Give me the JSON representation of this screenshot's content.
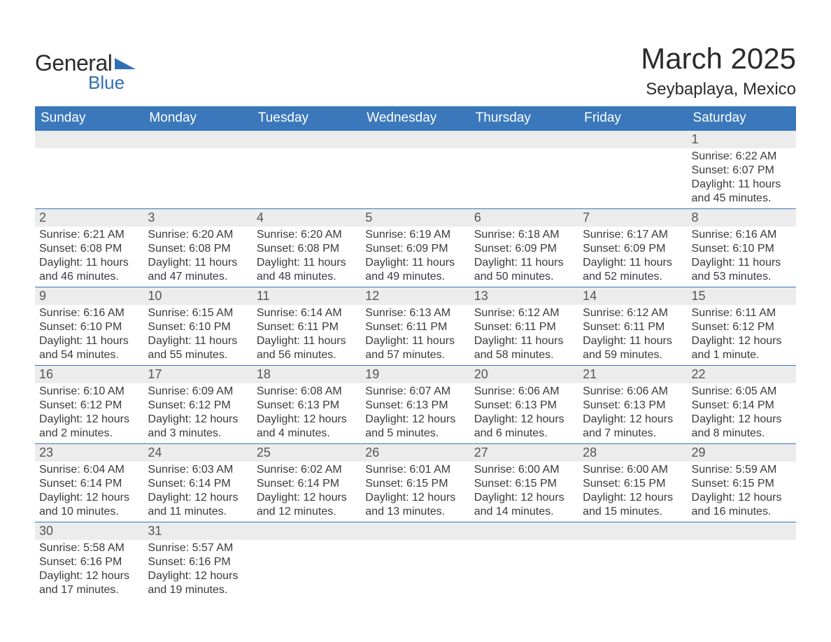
{
  "logo": {
    "word1": "General",
    "word2": "Blue",
    "triangle_color": "#2f6fb3",
    "text_color_dark": "#2b2b2b"
  },
  "title": "March 2025",
  "location": "Seybaplaya, Mexico",
  "colors": {
    "header_bg": "#3a78bb",
    "header_text": "#ffffff",
    "daynum_bg": "#ececec",
    "daynum_border": "#3a78bb",
    "body_text": "#3a3a3a",
    "daynum_text": "#555555",
    "page_bg": "#ffffff"
  },
  "fonts": {
    "title_size_pt": 42,
    "location_size_pt": 24,
    "weekday_size_pt": 19,
    "daynum_size_pt": 18,
    "detail_size_pt": 16,
    "family": "Arial"
  },
  "weekdays": [
    "Sunday",
    "Monday",
    "Tuesday",
    "Wednesday",
    "Thursday",
    "Friday",
    "Saturday"
  ],
  "grid": {
    "columns": 7,
    "rows": 6,
    "first_weekday_index": 6,
    "days_in_month": 31
  },
  "days": {
    "1": {
      "sunrise": "6:22 AM",
      "sunset": "6:07 PM",
      "daylight": "11 hours and 45 minutes."
    },
    "2": {
      "sunrise": "6:21 AM",
      "sunset": "6:08 PM",
      "daylight": "11 hours and 46 minutes."
    },
    "3": {
      "sunrise": "6:20 AM",
      "sunset": "6:08 PM",
      "daylight": "11 hours and 47 minutes."
    },
    "4": {
      "sunrise": "6:20 AM",
      "sunset": "6:08 PM",
      "daylight": "11 hours and 48 minutes."
    },
    "5": {
      "sunrise": "6:19 AM",
      "sunset": "6:09 PM",
      "daylight": "11 hours and 49 minutes."
    },
    "6": {
      "sunrise": "6:18 AM",
      "sunset": "6:09 PM",
      "daylight": "11 hours and 50 minutes."
    },
    "7": {
      "sunrise": "6:17 AM",
      "sunset": "6:09 PM",
      "daylight": "11 hours and 52 minutes."
    },
    "8": {
      "sunrise": "6:16 AM",
      "sunset": "6:10 PM",
      "daylight": "11 hours and 53 minutes."
    },
    "9": {
      "sunrise": "6:16 AM",
      "sunset": "6:10 PM",
      "daylight": "11 hours and 54 minutes."
    },
    "10": {
      "sunrise": "6:15 AM",
      "sunset": "6:10 PM",
      "daylight": "11 hours and 55 minutes."
    },
    "11": {
      "sunrise": "6:14 AM",
      "sunset": "6:11 PM",
      "daylight": "11 hours and 56 minutes."
    },
    "12": {
      "sunrise": "6:13 AM",
      "sunset": "6:11 PM",
      "daylight": "11 hours and 57 minutes."
    },
    "13": {
      "sunrise": "6:12 AM",
      "sunset": "6:11 PM",
      "daylight": "11 hours and 58 minutes."
    },
    "14": {
      "sunrise": "6:12 AM",
      "sunset": "6:11 PM",
      "daylight": "11 hours and 59 minutes."
    },
    "15": {
      "sunrise": "6:11 AM",
      "sunset": "6:12 PM",
      "daylight": "12 hours and 1 minute."
    },
    "16": {
      "sunrise": "6:10 AM",
      "sunset": "6:12 PM",
      "daylight": "12 hours and 2 minutes."
    },
    "17": {
      "sunrise": "6:09 AM",
      "sunset": "6:12 PM",
      "daylight": "12 hours and 3 minutes."
    },
    "18": {
      "sunrise": "6:08 AM",
      "sunset": "6:13 PM",
      "daylight": "12 hours and 4 minutes."
    },
    "19": {
      "sunrise": "6:07 AM",
      "sunset": "6:13 PM",
      "daylight": "12 hours and 5 minutes."
    },
    "20": {
      "sunrise": "6:06 AM",
      "sunset": "6:13 PM",
      "daylight": "12 hours and 6 minutes."
    },
    "21": {
      "sunrise": "6:06 AM",
      "sunset": "6:13 PM",
      "daylight": "12 hours and 7 minutes."
    },
    "22": {
      "sunrise": "6:05 AM",
      "sunset": "6:14 PM",
      "daylight": "12 hours and 8 minutes."
    },
    "23": {
      "sunrise": "6:04 AM",
      "sunset": "6:14 PM",
      "daylight": "12 hours and 10 minutes."
    },
    "24": {
      "sunrise": "6:03 AM",
      "sunset": "6:14 PM",
      "daylight": "12 hours and 11 minutes."
    },
    "25": {
      "sunrise": "6:02 AM",
      "sunset": "6:14 PM",
      "daylight": "12 hours and 12 minutes."
    },
    "26": {
      "sunrise": "6:01 AM",
      "sunset": "6:15 PM",
      "daylight": "12 hours and 13 minutes."
    },
    "27": {
      "sunrise": "6:00 AM",
      "sunset": "6:15 PM",
      "daylight": "12 hours and 14 minutes."
    },
    "28": {
      "sunrise": "6:00 AM",
      "sunset": "6:15 PM",
      "daylight": "12 hours and 15 minutes."
    },
    "29": {
      "sunrise": "5:59 AM",
      "sunset": "6:15 PM",
      "daylight": "12 hours and 16 minutes."
    },
    "30": {
      "sunrise": "5:58 AM",
      "sunset": "6:16 PM",
      "daylight": "12 hours and 17 minutes."
    },
    "31": {
      "sunrise": "5:57 AM",
      "sunset": "6:16 PM",
      "daylight": "12 hours and 19 minutes."
    }
  },
  "labels": {
    "sunrise_prefix": "Sunrise: ",
    "sunset_prefix": "Sunset: ",
    "daylight_prefix": "Daylight: "
  }
}
